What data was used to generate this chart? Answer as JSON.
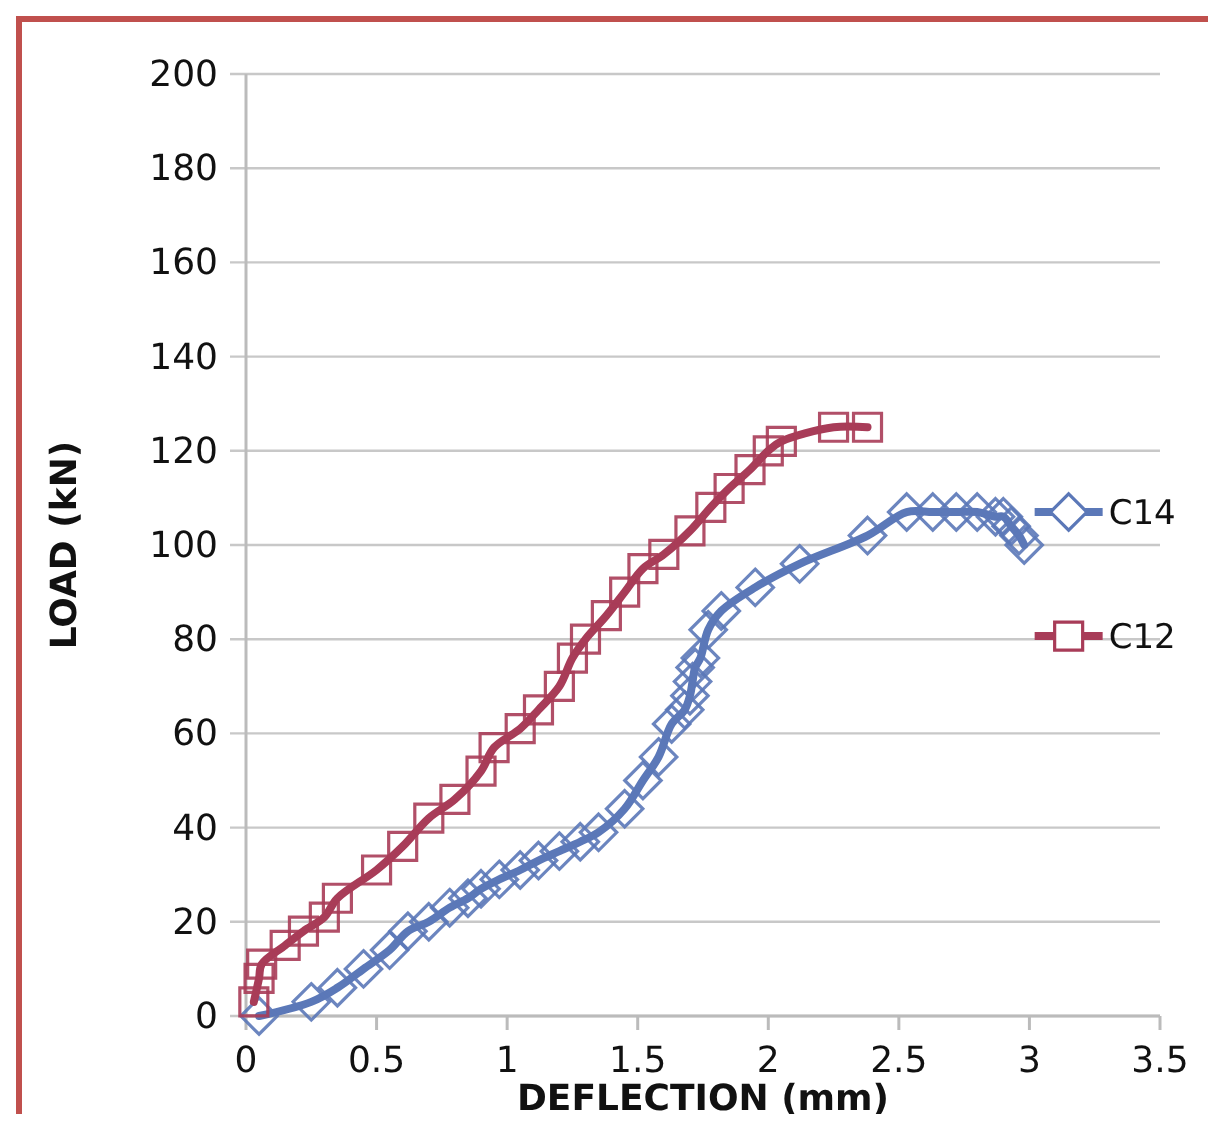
{
  "chart_data": {
    "type": "line",
    "xlabel": "DEFLECTION (mm)",
    "ylabel": "LOAD (kN)",
    "xlim": [
      0,
      3.5
    ],
    "xticks": [
      0,
      0.5,
      1,
      1.5,
      2,
      2.5,
      3,
      3.5
    ],
    "ylim": [
      0,
      200
    ],
    "yticks": [
      0,
      20,
      40,
      60,
      80,
      100,
      120,
      140,
      160,
      180,
      200
    ],
    "grid": "y",
    "legend": "right",
    "series": [
      {
        "name": "C14",
        "color": "#5b78b8",
        "marker": "diamond",
        "x": [
          0.05,
          0.25,
          0.35,
          0.45,
          0.55,
          0.62,
          0.7,
          0.78,
          0.85,
          0.9,
          0.97,
          1.05,
          1.12,
          1.2,
          1.28,
          1.35,
          1.45,
          1.52,
          1.58,
          1.63,
          1.68,
          1.7,
          1.71,
          1.72,
          1.74,
          1.77,
          1.82,
          1.95,
          2.12,
          2.38,
          2.53,
          2.63,
          2.72,
          2.8,
          2.87,
          2.9,
          2.93,
          2.96,
          2.98
        ],
        "values": [
          0,
          3,
          6,
          10,
          14,
          18,
          20,
          23,
          25,
          27,
          29,
          31,
          33,
          35,
          37,
          39,
          44,
          50,
          55,
          62,
          65,
          68,
          71,
          74,
          76,
          82,
          86,
          91,
          96,
          102,
          107,
          107,
          107,
          107,
          106,
          106,
          104,
          102,
          100
        ]
      },
      {
        "name": "C12",
        "color": "#a83c58",
        "marker": "square",
        "x": [
          0.03,
          0.05,
          0.06,
          0.15,
          0.22,
          0.3,
          0.35,
          0.5,
          0.6,
          0.7,
          0.8,
          0.9,
          0.95,
          1.05,
          1.12,
          1.2,
          1.25,
          1.3,
          1.38,
          1.45,
          1.52,
          1.6,
          1.7,
          1.78,
          1.85,
          1.93,
          2.0,
          2.05,
          2.25,
          2.38
        ],
        "values": [
          3,
          8,
          11,
          15,
          18,
          21,
          25,
          31,
          36,
          42,
          46,
          52,
          57,
          61,
          65,
          70,
          76,
          80,
          85,
          90,
          95,
          98,
          103,
          108,
          112,
          116,
          120,
          122,
          125,
          125
        ]
      }
    ]
  }
}
